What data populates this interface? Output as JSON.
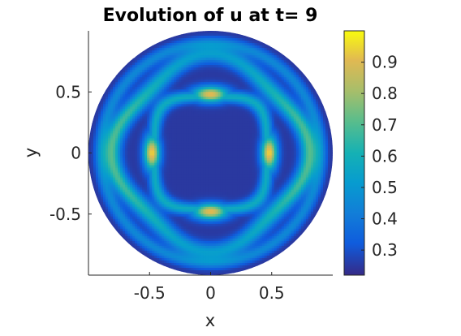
{
  "chart_data": {
    "type": "heatmap",
    "title": "Evolution of u at t= 9",
    "xlabel": "x",
    "ylabel": "y",
    "xlim": [
      -1,
      1
    ],
    "ylim": [
      -1,
      1
    ],
    "domain": "unit disk",
    "x_ticks": [
      {
        "value": -0.5,
        "label": "-0.5"
      },
      {
        "value": 0,
        "label": "0"
      },
      {
        "value": 0.5,
        "label": "0.5"
      }
    ],
    "y_ticks": [
      {
        "value": 0.5,
        "label": "0.5"
      },
      {
        "value": 0,
        "label": "0"
      },
      {
        "value": -0.5,
        "label": "-0.5"
      }
    ],
    "colorbar": {
      "colormap": "parula",
      "range": [
        0.22,
        1.0
      ],
      "ticks": [
        {
          "value": 0.3,
          "label": "0.3"
        },
        {
          "value": 0.4,
          "label": "0.4"
        },
        {
          "value": 0.5,
          "label": "0.5"
        },
        {
          "value": 0.6,
          "label": "0.6"
        },
        {
          "value": 0.7,
          "label": "0.7"
        },
        {
          "value": 0.8,
          "label": "0.8"
        },
        {
          "value": 0.9,
          "label": "0.9"
        }
      ]
    },
    "field_features": [
      {
        "name": "center-plateau",
        "level": 0.25
      },
      {
        "name": "inner-square-ring",
        "level": 0.58
      },
      {
        "name": "hotspot-top",
        "x": 0,
        "y": 0.48,
        "level": 0.92
      },
      {
        "name": "hotspot-bottom",
        "x": 0,
        "y": -0.48,
        "level": 0.92
      },
      {
        "name": "hotspot-left",
        "x": -0.48,
        "y": 0,
        "level": 0.95
      },
      {
        "name": "hotspot-right",
        "x": 0.48,
        "y": 0,
        "level": 0.95
      },
      {
        "name": "outer-ring",
        "level": 0.7
      },
      {
        "name": "boundary-level",
        "level": 0.25
      }
    ]
  }
}
